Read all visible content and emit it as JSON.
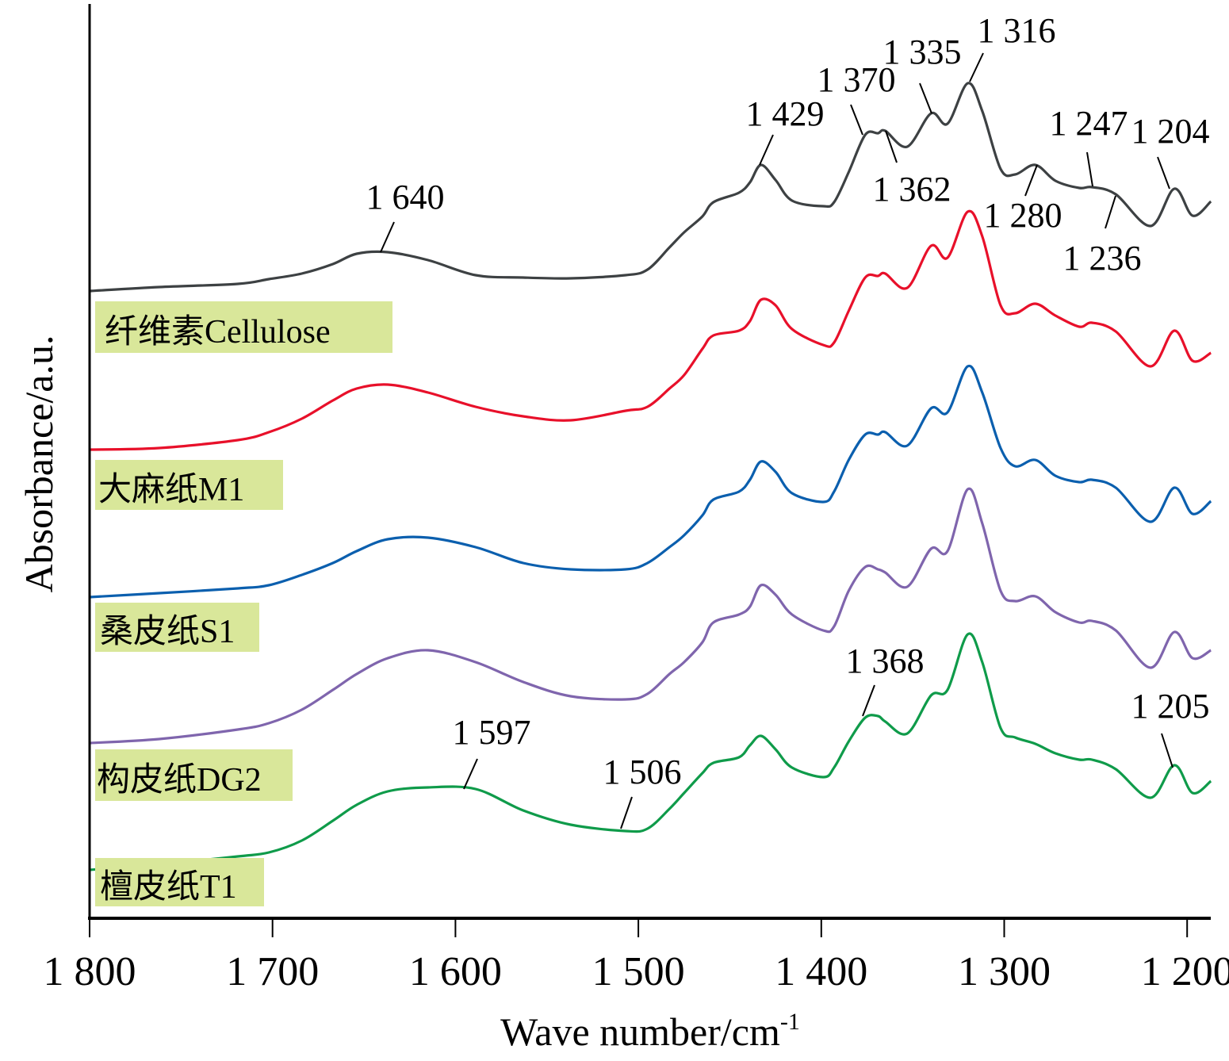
{
  "chart_data": {
    "type": "line",
    "title": "",
    "xlabel": "Wave number/cm",
    "xlabel_superscript": "-1",
    "ylabel": "Absorbance/a.u.",
    "xlim": [
      1800,
      1187
    ],
    "ylim": [
      0,
      11.58
    ],
    "x_reversed": true,
    "y_ticks_shown": false,
    "grid": false,
    "xticks": [
      1800,
      1700,
      1600,
      1500,
      1400,
      1300,
      1200
    ],
    "xtick_labels": [
      "1 800",
      "1 700",
      "1 600",
      "1 500",
      "1 400",
      "1 300",
      "1 200"
    ],
    "x": [
      1800,
      1762,
      1719,
      1702,
      1684,
      1667,
      1654,
      1637,
      1615,
      1589,
      1563,
      1537,
      1507,
      1495,
      1483,
      1475,
      1465,
      1459,
      1445,
      1439,
      1433,
      1425,
      1416,
      1399,
      1393,
      1385,
      1376,
      1369,
      1365,
      1353,
      1340,
      1331,
      1320,
      1312,
      1302,
      1294,
      1283,
      1272,
      1259,
      1252,
      1239,
      1220,
      1207,
      1197,
      1187
    ],
    "series": [
      {
        "name": "纤维素Cellulose",
        "color": "#3d4143",
        "values": [
          7.91,
          7.96,
          8.0,
          8.06,
          8.13,
          8.25,
          8.38,
          8.4,
          8.3,
          8.11,
          8.08,
          8.07,
          8.11,
          8.18,
          8.46,
          8.65,
          8.85,
          9.03,
          9.15,
          9.28,
          9.5,
          9.31,
          9.05,
          8.98,
          9.03,
          9.41,
          9.88,
          9.9,
          9.93,
          9.73,
          10.15,
          10.02,
          10.53,
          10.18,
          9.45,
          9.38,
          9.5,
          9.3,
          9.21,
          9.22,
          9.13,
          8.73,
          9.2,
          8.86,
          9.04
        ]
      },
      {
        "name": "大麻纸M1",
        "color": "#e8102a",
        "values": [
          5.91,
          5.93,
          6.03,
          6.13,
          6.3,
          6.53,
          6.68,
          6.73,
          6.63,
          6.45,
          6.33,
          6.28,
          6.4,
          6.45,
          6.68,
          6.85,
          7.18,
          7.35,
          7.41,
          7.53,
          7.8,
          7.73,
          7.43,
          7.23,
          7.26,
          7.66,
          8.08,
          8.1,
          8.13,
          7.95,
          8.48,
          8.33,
          8.91,
          8.6,
          7.73,
          7.63,
          7.75,
          7.6,
          7.46,
          7.51,
          7.4,
          6.96,
          7.41,
          7.03,
          7.13
        ]
      },
      {
        "name": "桑皮纸S1",
        "color": "#0b5fae",
        "values": [
          4.05,
          4.1,
          4.16,
          4.2,
          4.33,
          4.48,
          4.63,
          4.78,
          4.8,
          4.68,
          4.48,
          4.4,
          4.4,
          4.48,
          4.68,
          4.83,
          5.08,
          5.28,
          5.38,
          5.53,
          5.76,
          5.63,
          5.36,
          5.25,
          5.38,
          5.78,
          6.1,
          6.1,
          6.13,
          5.96,
          6.43,
          6.38,
          6.96,
          6.63,
          5.93,
          5.7,
          5.78,
          5.58,
          5.5,
          5.53,
          5.43,
          5.0,
          5.43,
          5.1,
          5.26
        ]
      },
      {
        "name": "构皮纸DG2",
        "color": "#7f65ad",
        "values": [
          2.21,
          2.26,
          2.38,
          2.46,
          2.63,
          2.88,
          3.08,
          3.28,
          3.38,
          3.23,
          2.98,
          2.8,
          2.76,
          2.83,
          3.08,
          3.23,
          3.48,
          3.73,
          3.83,
          3.93,
          4.2,
          4.08,
          3.83,
          3.63,
          3.68,
          4.13,
          4.43,
          4.4,
          4.36,
          4.18,
          4.66,
          4.63,
          5.41,
          4.98,
          4.13,
          4.0,
          4.06,
          3.86,
          3.73,
          3.75,
          3.63,
          3.16,
          3.61,
          3.28,
          3.38
        ]
      },
      {
        "name": "檀皮纸T1",
        "color": "#0f9b4a",
        "values": [
          0.61,
          0.68,
          0.78,
          0.83,
          0.98,
          1.23,
          1.43,
          1.6,
          1.65,
          1.63,
          1.36,
          1.18,
          1.1,
          1.13,
          1.38,
          1.58,
          1.83,
          1.96,
          2.03,
          2.18,
          2.3,
          2.13,
          1.9,
          1.78,
          1.9,
          2.23,
          2.53,
          2.55,
          2.48,
          2.33,
          2.81,
          2.88,
          3.58,
          3.23,
          2.4,
          2.28,
          2.2,
          2.08,
          2.0,
          2.0,
          1.88,
          1.52,
          1.93,
          1.58,
          1.73
        ]
      }
    ],
    "legend_label_background": "#d9e79a",
    "annotations": [
      {
        "text": "1 640",
        "series": "纤维素Cellulose"
      },
      {
        "text": "1 429",
        "series": "纤维素Cellulose"
      },
      {
        "text": "1 370",
        "series": "纤维素Cellulose"
      },
      {
        "text": "1 362",
        "series": "纤维素Cellulose"
      },
      {
        "text": "1 335",
        "series": "纤维素Cellulose"
      },
      {
        "text": "1 316",
        "series": "纤维素Cellulose"
      },
      {
        "text": "1 280",
        "series": "纤维素Cellulose"
      },
      {
        "text": "1 247",
        "series": "纤维素Cellulose"
      },
      {
        "text": "1 236",
        "series": "纤维素Cellulose"
      },
      {
        "text": "1 204",
        "series": "纤维素Cellulose"
      },
      {
        "text": "1 368",
        "series": "檀皮纸T1"
      },
      {
        "text": "1 205",
        "series": "檀皮纸T1"
      },
      {
        "text": "1 597",
        "series": "檀皮纸T1"
      },
      {
        "text": "1 506",
        "series": "檀皮纸T1"
      }
    ]
  }
}
